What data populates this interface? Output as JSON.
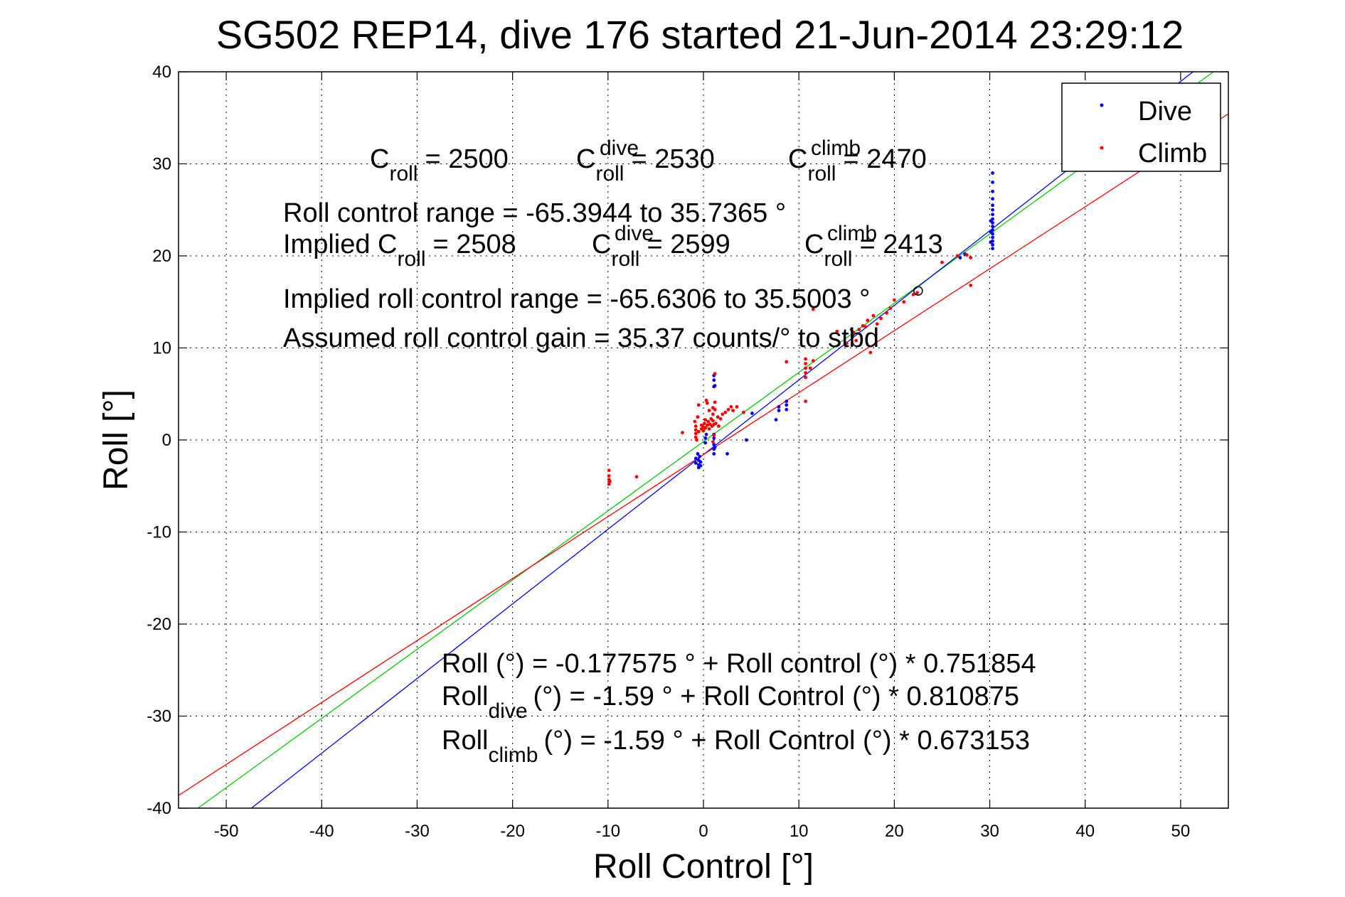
{
  "colors": {
    "dive": "#0000ff",
    "climb": "#ff0000",
    "fit": "#00cc00",
    "grid": "#000000"
  },
  "chart_data": {
    "type": "scatter",
    "title": "SG502 REP14, dive 176 started 21-Jun-2014 23:29:12",
    "xlabel": "Roll Control [°]",
    "ylabel": "Roll [°]",
    "xlim": [
      -55,
      55
    ],
    "ylim": [
      -40,
      40
    ],
    "xticks": [
      -50,
      -40,
      -30,
      -20,
      -10,
      0,
      10,
      20,
      30,
      40,
      50
    ],
    "yticks": [
      -40,
      -30,
      -20,
      -10,
      0,
      10,
      20,
      30,
      40
    ],
    "grid": true,
    "legend_position": "top-right",
    "legend": [
      {
        "label": "Dive",
        "color": "#0000ff"
      },
      {
        "label": "Climb",
        "color": "#ff0000"
      }
    ],
    "annotations": {
      "c_roll": {
        "base": "C",
        "sub": "roll",
        "value": "= 2500"
      },
      "c_roll_dive": {
        "base": "C",
        "sup": "dive",
        "sub": "roll",
        "value": "= 2530"
      },
      "c_roll_climb": {
        "base": "C",
        "sup": "climb",
        "sub": "roll",
        "value": "= 2470"
      },
      "roll_control_range": "Roll control range = -65.3944 to 35.7365 °",
      "implied_c_roll": {
        "prefix": "Implied C",
        "sub": "roll",
        "value": "= 2508"
      },
      "implied_c_roll_dive": {
        "base": "C",
        "sup": "dive",
        "sub": "roll",
        "value": "= 2599"
      },
      "implied_c_roll_climb": {
        "base": "C",
        "sup": "climb",
        "sub": "roll",
        "value": "= 2413"
      },
      "implied_range": "Implied roll control range = -65.6306 to 35.5003 °",
      "gain": "Assumed roll control gain = 35.37 counts/° to stbd",
      "eq_all": "Roll (°) = -0.177575 ° + Roll control (°) * 0.751854",
      "eq_dive": {
        "base": "Roll",
        "sub": "dive",
        "rest": "(°) = -1.59 ° + Roll Control (°) * 0.810875"
      },
      "eq_climb": {
        "base": "Roll",
        "sub": "climb",
        "rest": "(°) = -1.59 ° + Roll Control (°) * 0.673153"
      }
    },
    "fit_lines": [
      {
        "name": "all",
        "color": "#00cc00",
        "intercept": -0.177575,
        "slope": 0.751854
      },
      {
        "name": "dive",
        "color": "#0000ff",
        "intercept": -1.59,
        "slope": 0.810875
      },
      {
        "name": "climb",
        "color": "#ff0000",
        "intercept": -1.59,
        "slope": 0.673153
      }
    ],
    "marker": {
      "x": 22.5,
      "y": 16.2
    },
    "series": [
      {
        "name": "Dive",
        "color": "#0000ff",
        "points": [
          [
            30.3,
            20.8
          ],
          [
            30.3,
            21.2
          ],
          [
            30.3,
            21.6
          ],
          [
            30.3,
            22.0
          ],
          [
            30.3,
            22.4
          ],
          [
            30.3,
            22.8
          ],
          [
            30.3,
            23.2
          ],
          [
            30.3,
            23.6
          ],
          [
            30.3,
            24.0
          ],
          [
            30.3,
            24.5
          ],
          [
            30.3,
            25.0
          ],
          [
            30.3,
            25.5
          ],
          [
            30.3,
            26.2
          ],
          [
            30.3,
            27.0
          ],
          [
            30.3,
            28.0
          ],
          [
            30.3,
            29.0
          ],
          [
            30.1,
            21.5
          ],
          [
            30.1,
            22.6
          ],
          [
            30.1,
            23.8
          ],
          [
            26.9,
            19.8
          ],
          [
            27.4,
            20.2
          ],
          [
            8.7,
            3.3
          ],
          [
            8.7,
            3.8
          ],
          [
            8.7,
            4.2
          ],
          [
            7.9,
            3.2
          ],
          [
            7.9,
            3.6
          ],
          [
            7.6,
            2.2
          ],
          [
            5.1,
            2.9
          ],
          [
            4.5,
            0.0
          ],
          [
            2.5,
            -1.5
          ],
          [
            1.1,
            5.8
          ],
          [
            1.1,
            6.5
          ],
          [
            1.1,
            7.0
          ],
          [
            1.2,
            5.9
          ],
          [
            1.1,
            -0.5
          ],
          [
            1.1,
            -1.0
          ],
          [
            1.1,
            -1.5
          ],
          [
            1.1,
            0.2
          ],
          [
            1.1,
            0.6
          ],
          [
            1.2,
            -0.8
          ],
          [
            0.2,
            -0.3
          ],
          [
            0.2,
            0.2
          ],
          [
            0.3,
            0.6
          ],
          [
            -0.5,
            -2.2
          ],
          [
            -0.5,
            -2.7
          ],
          [
            -0.5,
            -3.0
          ],
          [
            -0.3,
            -2.4
          ],
          [
            -0.3,
            -2.8
          ],
          [
            -0.8,
            -2.0
          ],
          [
            -0.8,
            -2.5
          ],
          [
            -0.4,
            -1.8
          ],
          [
            -0.6,
            -1.5
          ]
        ]
      },
      {
        "name": "Climb",
        "color": "#ff0000",
        "points": [
          [
            -9.9,
            -3.3
          ],
          [
            -9.9,
            -3.9
          ],
          [
            -9.9,
            -4.3
          ],
          [
            -9.9,
            -4.8
          ],
          [
            -9.8,
            -4.5
          ],
          [
            -7.0,
            -4.0
          ],
          [
            -2.2,
            0.8
          ],
          [
            -0.8,
            0.3
          ],
          [
            -0.8,
            0.7
          ],
          [
            -0.8,
            1.1
          ],
          [
            -0.8,
            1.5
          ],
          [
            -0.7,
            0.0
          ],
          [
            -0.9,
            2.0
          ],
          [
            -0.6,
            2.5
          ],
          [
            -0.5,
            3.8
          ],
          [
            -0.5,
            0.9
          ],
          [
            -0.2,
            1.2
          ],
          [
            -0.2,
            1.6
          ],
          [
            0.0,
            1.0
          ],
          [
            0.0,
            1.4
          ],
          [
            0.1,
            1.8
          ],
          [
            0.2,
            2.2
          ],
          [
            0.2,
            1.3
          ],
          [
            0.4,
            1.6
          ],
          [
            0.5,
            2.0
          ],
          [
            0.6,
            1.2
          ],
          [
            0.7,
            1.7
          ],
          [
            0.8,
            2.3
          ],
          [
            0.9,
            1.5
          ],
          [
            1.0,
            2.1
          ],
          [
            1.0,
            2.8
          ],
          [
            1.0,
            3.5
          ],
          [
            1.1,
            1.7
          ],
          [
            0.4,
            4.0
          ],
          [
            0.6,
            3.2
          ],
          [
            0.3,
            4.3
          ],
          [
            1.2,
            7.2
          ],
          [
            1.2,
            3.3
          ],
          [
            1.2,
            4.1
          ],
          [
            1.0,
            -0.2
          ],
          [
            1.1,
            0.5
          ],
          [
            1.3,
            1.8
          ],
          [
            1.5,
            2.5
          ],
          [
            1.6,
            1.5
          ],
          [
            1.8,
            2.3
          ],
          [
            2.0,
            2.8
          ],
          [
            2.3,
            3.0
          ],
          [
            2.6,
            3.3
          ],
          [
            2.9,
            3.6
          ],
          [
            3.1,
            3.2
          ],
          [
            3.5,
            3.6
          ],
          [
            4.2,
            3.0
          ],
          [
            8.7,
            8.5
          ],
          [
            10.7,
            6.8
          ],
          [
            10.7,
            7.3
          ],
          [
            10.7,
            7.8
          ],
          [
            10.7,
            8.3
          ],
          [
            10.7,
            8.8
          ],
          [
            10.7,
            4.2
          ],
          [
            11.2,
            7.8
          ],
          [
            11.5,
            8.6
          ],
          [
            11.5,
            14.2
          ],
          [
            14.0,
            11.8
          ],
          [
            15.0,
            10.5
          ],
          [
            15.5,
            12.0
          ],
          [
            15.6,
            11.2
          ],
          [
            15.7,
            11.7
          ],
          [
            16.0,
            10.8
          ],
          [
            16.3,
            12.0
          ],
          [
            16.7,
            12.4
          ],
          [
            17.0,
            12.3
          ],
          [
            17.2,
            13.0
          ],
          [
            17.5,
            9.5
          ],
          [
            17.8,
            13.5
          ],
          [
            18.2,
            12.6
          ],
          [
            18.6,
            13.2
          ],
          [
            19.2,
            13.8
          ],
          [
            19.6,
            14.3
          ],
          [
            20.0,
            15.2
          ],
          [
            21.0,
            15.0
          ],
          [
            22.0,
            15.8
          ],
          [
            22.4,
            16.0
          ],
          [
            25.0,
            19.3
          ],
          [
            26.6,
            20.0
          ],
          [
            27.6,
            20.1
          ],
          [
            28.0,
            19.8
          ],
          [
            28.0,
            16.8
          ]
        ]
      }
    ]
  }
}
